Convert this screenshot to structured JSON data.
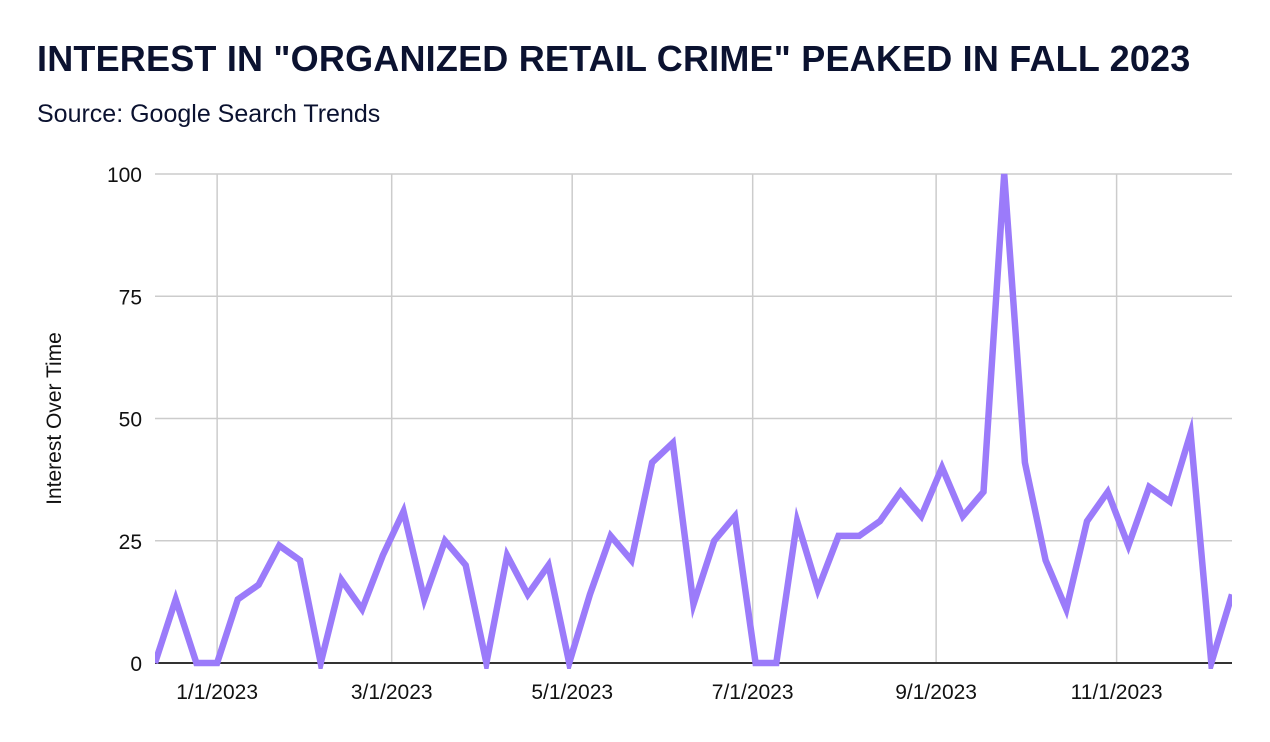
{
  "title": "INTEREST IN \"ORGANIZED RETAIL CRIME\" PEAKED IN FALL 2023",
  "subtitle": "Source: Google Search Trends",
  "colors": {
    "line": "#9b7bfa",
    "grid": "#cccccc",
    "axis": "#333333",
    "text": "#0b1230"
  },
  "chart_data": {
    "type": "line",
    "title": "INTEREST IN \"ORGANIZED RETAIL CRIME\" PEAKED IN FALL 2023",
    "subtitle": "Source: Google Search Trends",
    "xlabel": "",
    "ylabel": "Interest Over Time",
    "ylim": [
      0,
      100
    ],
    "yticks": [
      0,
      25,
      50,
      75,
      100
    ],
    "xlim": [
      "2022-12-11",
      "2023-12-10"
    ],
    "xticks": [
      {
        "date": "2023-01-01",
        "label": "1/1/2023"
      },
      {
        "date": "2023-03-01",
        "label": "3/1/2023"
      },
      {
        "date": "2023-05-01",
        "label": "5/1/2023"
      },
      {
        "date": "2023-07-01",
        "label": "7/1/2023"
      },
      {
        "date": "2023-09-01",
        "label": "9/1/2023"
      },
      {
        "date": "2023-11-01",
        "label": "11/1/2023"
      }
    ],
    "grid": true,
    "legend": "none",
    "series": [
      {
        "x": [
          "2022-12-11",
          "2022-12-18",
          "2022-12-25",
          "2023-01-01",
          "2023-01-08",
          "2023-01-15",
          "2023-01-22",
          "2023-01-29",
          "2023-02-05",
          "2023-02-12",
          "2023-02-19",
          "2023-02-26",
          "2023-03-05",
          "2023-03-12",
          "2023-03-19",
          "2023-03-26",
          "2023-04-02",
          "2023-04-09",
          "2023-04-16",
          "2023-04-23",
          "2023-04-30",
          "2023-05-07",
          "2023-05-14",
          "2023-05-21",
          "2023-05-28",
          "2023-06-04",
          "2023-06-11",
          "2023-06-18",
          "2023-06-25",
          "2023-07-02",
          "2023-07-09",
          "2023-07-16",
          "2023-07-23",
          "2023-07-30",
          "2023-08-06",
          "2023-08-13",
          "2023-08-20",
          "2023-08-27",
          "2023-09-03",
          "2023-09-10",
          "2023-09-17",
          "2023-09-24",
          "2023-10-01",
          "2023-10-08",
          "2023-10-15",
          "2023-10-22",
          "2023-10-29",
          "2023-11-05",
          "2023-11-12",
          "2023-11-19",
          "2023-11-26",
          "2023-12-03",
          "2023-12-10"
        ],
        "values": [
          0,
          13,
          0,
          0,
          13,
          16,
          24,
          21,
          0,
          17,
          11,
          22,
          31,
          13,
          25,
          20,
          0,
          22,
          14,
          20,
          0,
          14,
          26,
          21,
          41,
          45,
          12,
          25,
          30,
          0,
          0,
          29,
          15,
          26,
          26,
          29,
          35,
          30,
          40,
          30,
          35,
          100,
          41,
          21,
          11,
          29,
          35,
          24,
          36,
          33,
          47,
          0,
          14
        ]
      }
    ]
  }
}
